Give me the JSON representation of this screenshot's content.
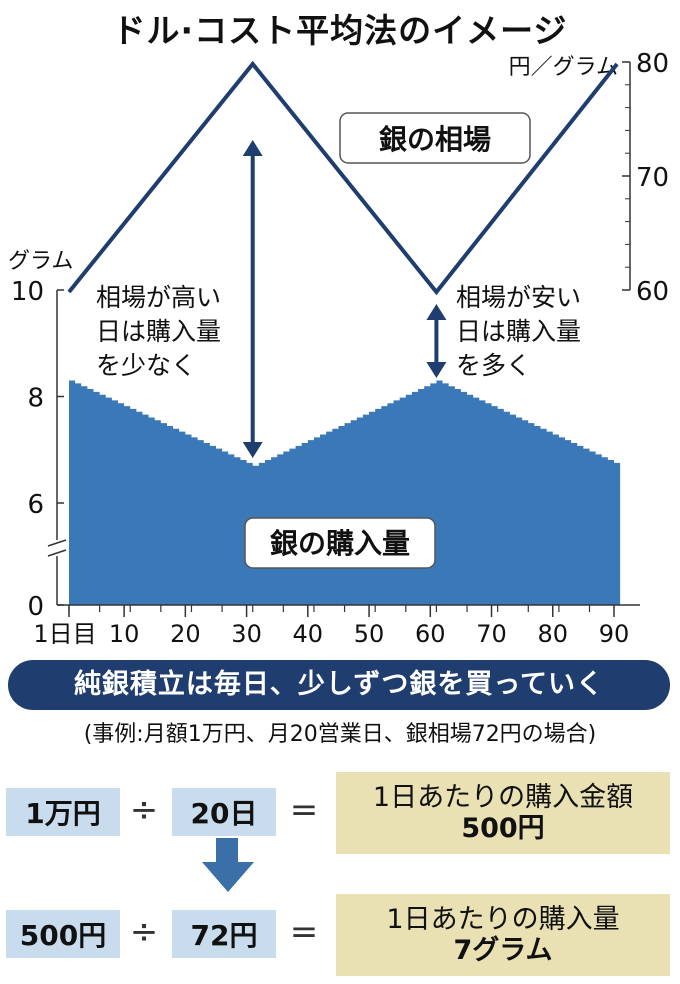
{
  "title": "ドル·コスト平均法のイメージ",
  "chart_data": {
    "type": "line+area",
    "x": [
      1,
      10,
      20,
      30,
      40,
      50,
      60,
      70,
      80,
      90
    ],
    "x_tick_labels": [
      "1日目",
      "10",
      "20",
      "30",
      "40",
      "50",
      "60",
      "70",
      "80",
      "90"
    ],
    "price_series": {
      "name": "銀の相場",
      "unit_label": "円／グラム",
      "x": [
        1,
        31,
        61,
        91
      ],
      "values": [
        60,
        80,
        60,
        80
      ],
      "y_ticks": [
        "80",
        "70",
        "60"
      ],
      "color": "#1f3d6e"
    },
    "purchase_series": {
      "name": "銀の購入量",
      "unit_label": "グラム",
      "x": [
        1,
        31,
        61,
        91
      ],
      "values": [
        8.3,
        6.7,
        8.3,
        6.7
      ],
      "y_ticks": [
        "10",
        "8",
        "6",
        "0"
      ],
      "color": "#3a78b8"
    },
    "annotations": {
      "high": "相場が高い\n日は購入量\nを少なく",
      "low": "相場が安い\n日は購入量\nを多く"
    }
  },
  "banner": "純銀積立は毎日、少しずつ銀を買っていく",
  "example": "(事例:月額1万円、月20営業日、銀相場72円の場合)",
  "calc": {
    "row1": {
      "a": "1万円",
      "op": "÷",
      "b": "20日",
      "eq": "=",
      "result_label": "1日あたりの購入金額",
      "result_value": "500円"
    },
    "row2": {
      "a": "500円",
      "op": "÷",
      "b": "72円",
      "eq": "=",
      "result_label": "1日あたりの購入量",
      "result_value": "7グラム"
    }
  },
  "colors": {
    "navy": "#1f3d6e",
    "area": "#3a78b8",
    "box_blue": "#c8dced",
    "box_tan": "#e9e0b4"
  }
}
